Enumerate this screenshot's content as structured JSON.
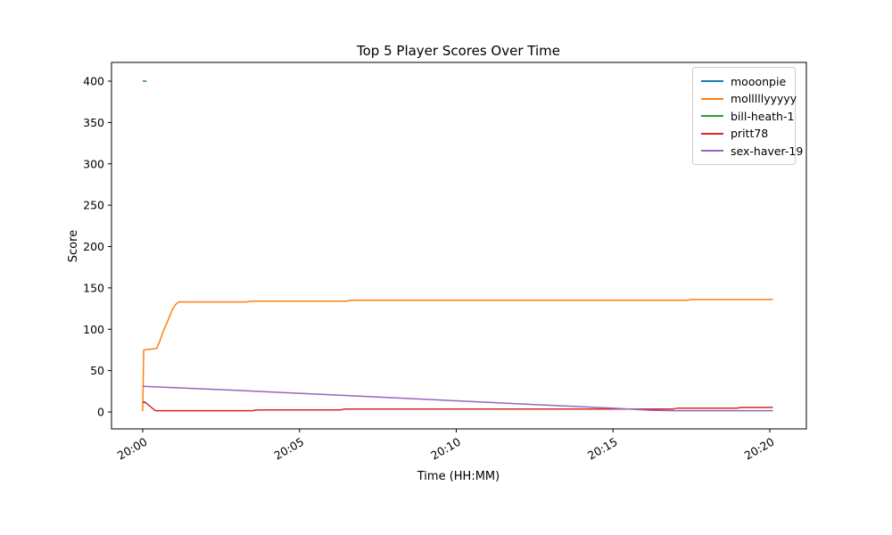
{
  "figure": {
    "background": "#ffffff",
    "axes_edge_color": "#000000",
    "text_color": "#000000",
    "legend_border_color": "#cccccc"
  },
  "chart_data": {
    "type": "line",
    "title": "Top 5 Player Scores Over Time",
    "xlabel": "Time (HH:MM)",
    "ylabel": "Score",
    "grid": false,
    "legend_position": "upper right",
    "x_unit": "minutes after 20:00",
    "xlim": [
      -1.0,
      21.2
    ],
    "ylim": [
      -20.5,
      422
    ],
    "x_tick_label_rotation": 30,
    "x_ticks": [
      {
        "t": 0,
        "label": "20:00"
      },
      {
        "t": 5,
        "label": "20:05"
      },
      {
        "t": 10,
        "label": "20:10"
      },
      {
        "t": 15,
        "label": "20:15"
      },
      {
        "t": 20,
        "label": "20:20"
      }
    ],
    "y_ticks": [
      0,
      50,
      100,
      150,
      200,
      250,
      300,
      350,
      400
    ],
    "series": [
      {
        "name": "mooonpie",
        "color": "#1f77b4",
        "points": [
          [
            0,
            400
          ],
          [
            0.12,
            400
          ]
        ]
      },
      {
        "name": "molllllyyyyy",
        "color": "#ff7f0e",
        "points": [
          [
            0,
            1
          ],
          [
            0.03,
            75
          ],
          [
            0.3,
            76
          ],
          [
            0.45,
            77
          ],
          [
            0.55,
            86
          ],
          [
            0.65,
            97
          ],
          [
            0.75,
            106
          ],
          [
            0.85,
            115
          ],
          [
            0.95,
            124
          ],
          [
            1.05,
            130
          ],
          [
            1.15,
            133
          ],
          [
            3.3,
            133
          ],
          [
            3.45,
            134
          ],
          [
            6.5,
            134
          ],
          [
            6.65,
            135
          ],
          [
            17.35,
            135
          ],
          [
            17.5,
            136
          ],
          [
            20.1,
            136
          ]
        ]
      },
      {
        "name": "bill-heath-1",
        "color": "#2ca02c",
        "points": [
          [
            0,
            12
          ],
          [
            0.1,
            12
          ]
        ]
      },
      {
        "name": "pritt78",
        "color": "#d62728",
        "points": [
          [
            0,
            12
          ],
          [
            0.1,
            11
          ],
          [
            0.4,
            1.5
          ],
          [
            3.5,
            1.5
          ],
          [
            3.65,
            2.5
          ],
          [
            6.3,
            2.5
          ],
          [
            6.45,
            3.5
          ],
          [
            16.9,
            3.5
          ],
          [
            17.05,
            4.5
          ],
          [
            18.95,
            4.5
          ],
          [
            19.1,
            5.5
          ],
          [
            20.1,
            5.5
          ]
        ]
      },
      {
        "name": "sex-haver-19",
        "color": "#9467bd",
        "points": [
          [
            0,
            31
          ],
          [
            2.5,
            27
          ],
          [
            5,
            22.5
          ],
          [
            7.5,
            18
          ],
          [
            10,
            13.5
          ],
          [
            12.5,
            9
          ],
          [
            15,
            4.5
          ],
          [
            16.2,
            2
          ],
          [
            17,
            1.5
          ],
          [
            20.1,
            1.5
          ]
        ]
      }
    ],
    "legend": [
      "mooonpie",
      "molllllyyyyy",
      "bill-heath-1",
      "pritt78",
      "sex-haver-19"
    ]
  }
}
